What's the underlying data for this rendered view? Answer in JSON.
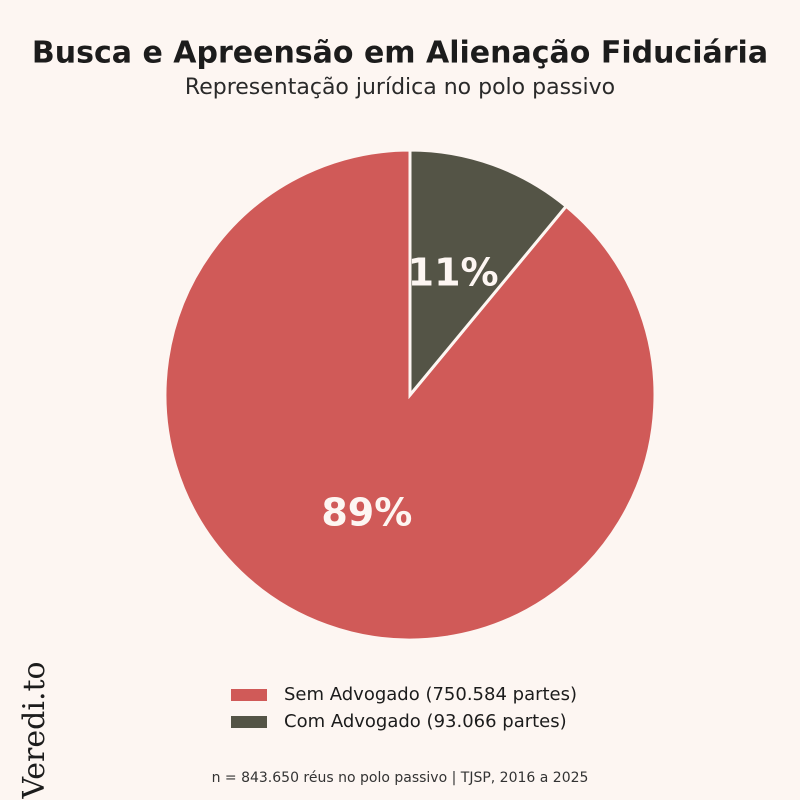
{
  "chart_data": {
    "type": "pie",
    "title": "Busca e Apreensão em Alienação Fiduciária",
    "subtitle": "Representação jurídica no polo passivo",
    "categories": [
      "Sem Advogado (750.584 partes)",
      "Com Advogado (93.066 partes)"
    ],
    "values": [
      89,
      11
    ],
    "value_labels": [
      "89%",
      "11%"
    ],
    "colors": [
      "#d05a58",
      "#545446"
    ],
    "legend": "bottom",
    "note": "n = 843.650 réus no polo passivo | TJSP, 2016 a 2025",
    "watermark": "Veredi.to"
  }
}
